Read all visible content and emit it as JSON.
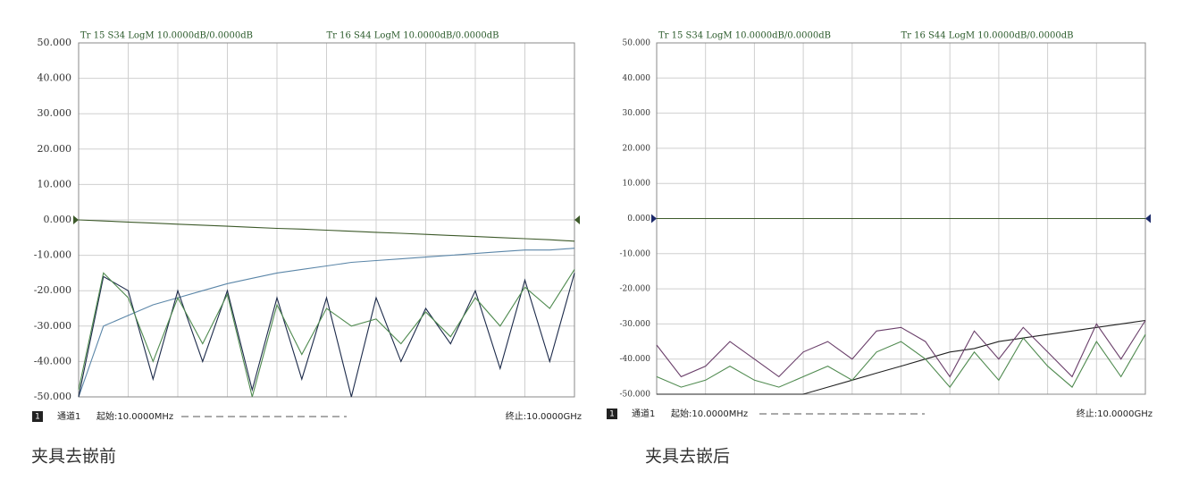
{
  "chart_data": [
    {
      "type": "line",
      "trace_labels": [
        "Tr 15 S34 LogM 10.0000dB/0.0000dB",
        "Tr 16 S44 LogM 10.0000dB/0.0000dB"
      ],
      "channel_badge": "1",
      "channel": "通道1",
      "start": "起始:10.0000MHz",
      "stop": "终止:10.0000GHz",
      "caption": "夹具去嵌前",
      "x": [
        0,
        0.5,
        1,
        1.5,
        2,
        2.5,
        3,
        3.5,
        4,
        4.5,
        5,
        5.5,
        6,
        6.5,
        7,
        7.5,
        8,
        8.5,
        9,
        9.5,
        10
      ],
      "xlim": [
        0,
        10
      ],
      "xticks": [
        0,
        1,
        2,
        3,
        4,
        5,
        6,
        7,
        8,
        9,
        10
      ],
      "ylim": [
        -50,
        50
      ],
      "yticks": [
        {
          "value": 50,
          "label": "50.000"
        },
        {
          "value": 40,
          "label": "40.000"
        },
        {
          "value": 30,
          "label": "30.000"
        },
        {
          "value": 20,
          "label": "20.000"
        },
        {
          "value": 10,
          "label": "10.000"
        },
        {
          "value": 0,
          "label": "0.000"
        },
        {
          "value": -10,
          "label": "-10.000"
        },
        {
          "value": -20,
          "label": "-20.000"
        },
        {
          "value": -30,
          "label": "-30.000"
        },
        {
          "value": -40,
          "label": "-40.000"
        },
        {
          "value": -50,
          "label": "-50.000"
        }
      ],
      "grid": true,
      "series": [
        {
          "color": "#3d5a2a",
          "values": [
            0,
            -0.3,
            -0.6,
            -0.9,
            -1.2,
            -1.5,
            -1.8,
            -2.1,
            -2.4,
            -2.6,
            -2.9,
            -3.2,
            -3.5,
            -3.8,
            -4.1,
            -4.4,
            -4.7,
            -5,
            -5.3,
            -5.6,
            -6
          ]
        },
        {
          "color": "#5b86a8",
          "values": [
            -50,
            -30,
            -27,
            -24,
            -22,
            -20,
            -18,
            -16.5,
            -15,
            -14,
            -13,
            -12,
            -11.5,
            -11,
            -10.5,
            -10,
            -9.5,
            -9,
            -8.5,
            -8.5,
            -8
          ]
        },
        {
          "color": "#1c2a4a",
          "values": [
            -50,
            -16,
            -20,
            -45,
            -20,
            -40,
            -20,
            -48,
            -22,
            -45,
            -22,
            -50,
            -22,
            -40,
            -25,
            -35,
            -20,
            -42,
            -17,
            -40,
            -15
          ]
        },
        {
          "color": "#4f8a4f",
          "values": [
            -48,
            -15,
            -22,
            -40,
            -22,
            -35,
            -21,
            -50,
            -24,
            -38,
            -25,
            -30,
            -28,
            -35,
            -26,
            -33,
            -22,
            -30,
            -19,
            -25,
            -14
          ]
        }
      ]
    },
    {
      "type": "line",
      "trace_labels": [
        "Tr 15 S34 LogM 10.0000dB/0.0000dB",
        "Tr 16 S44 LogM 10.0000dB/0.0000dB"
      ],
      "channel_badge": "1",
      "channel": "通道1",
      "start": "起始:10.0000MHz",
      "stop": "终止:10.0000GHz",
      "caption": "夹具去嵌后",
      "x": [
        0,
        0.5,
        1,
        1.5,
        2,
        2.5,
        3,
        3.5,
        4,
        4.5,
        5,
        5.5,
        6,
        6.5,
        7,
        7.5,
        8,
        8.5,
        9,
        9.5,
        10
      ],
      "xlim": [
        0,
        10
      ],
      "xticks": [
        0,
        1,
        2,
        3,
        4,
        5,
        6,
        7,
        8,
        9,
        10
      ],
      "ylim": [
        -50,
        50
      ],
      "yticks": [
        {
          "value": 50,
          "label": "50.000"
        },
        {
          "value": 40,
          "label": "40.000"
        },
        {
          "value": 30,
          "label": "30.000"
        },
        {
          "value": 20,
          "label": "20.000"
        },
        {
          "value": 10,
          "label": "10.000"
        },
        {
          "value": 0,
          "label": "0.000"
        },
        {
          "value": -10,
          "label": "-10.000"
        },
        {
          "value": -20,
          "label": "-20.000"
        },
        {
          "value": -30,
          "label": "-30.000"
        },
        {
          "value": -40,
          "label": "-40.000"
        },
        {
          "value": -50,
          "label": "-50.000"
        }
      ],
      "grid": true,
      "series": [
        {
          "color": "#3d5a2a",
          "values": [
            0,
            0,
            0,
            0,
            0,
            0,
            0,
            0,
            0,
            0,
            0,
            0,
            0,
            0,
            0,
            0,
            0,
            0,
            0,
            0,
            0
          ]
        },
        {
          "color": "#222222",
          "values": [
            -50,
            -50,
            -50,
            -50,
            -50,
            -50,
            -50,
            -48,
            -46,
            -44,
            -42,
            -40,
            -38,
            -37,
            -35,
            -34,
            -33,
            -32,
            -31,
            -30,
            -29
          ]
        },
        {
          "color": "#6a3f6a",
          "values": [
            -36,
            -45,
            -42,
            -35,
            -40,
            -45,
            -38,
            -35,
            -40,
            -32,
            -31,
            -35,
            -45,
            -32,
            -40,
            -31,
            -38,
            -45,
            -30,
            -40,
            -29
          ]
        },
        {
          "color": "#4f8a4f",
          "values": [
            -45,
            -48,
            -46,
            -42,
            -46,
            -48,
            -45,
            -42,
            -46,
            -38,
            -35,
            -40,
            -48,
            -38,
            -46,
            -34,
            -42,
            -48,
            -35,
            -45,
            -33
          ]
        }
      ]
    }
  ]
}
